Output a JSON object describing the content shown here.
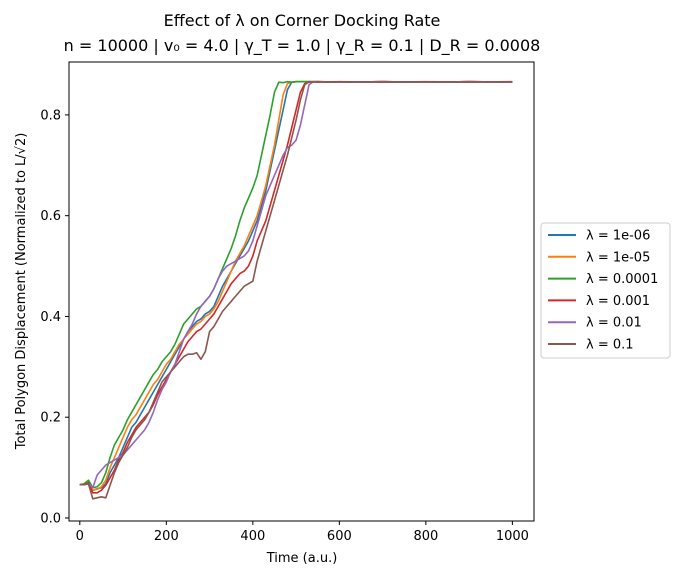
{
  "chart_data": {
    "type": "line",
    "title": "Effect of λ on Corner Docking Rate",
    "subtitle": "n = 10000 | v₀ = 4.0 | γ_T = 1.0 | γ_R = 0.1 | D_R = 0.0008",
    "xlabel": "Time (a.u.)",
    "ylabel": "Total Polygon Displacement (Normalized to L/√2)",
    "xlim": [
      -25,
      1050
    ],
    "ylim": [
      -0.006,
      0.905
    ],
    "xticks": [
      0,
      200,
      400,
      600,
      800,
      1000
    ],
    "xtick_labels": [
      "0",
      "200",
      "400",
      "600",
      "800",
      "1000"
    ],
    "yticks": [
      0.0,
      0.2,
      0.4,
      0.6,
      0.8
    ],
    "ytick_labels": [
      "0.0",
      "0.2",
      "0.4",
      "0.6",
      "0.8"
    ],
    "grid": false,
    "legend_position": "right-outside",
    "series": [
      {
        "name": "λ = 1e-06",
        "color": "#1f77b4",
        "x": [
          0,
          10,
          20,
          30,
          40,
          50,
          60,
          70,
          80,
          90,
          100,
          110,
          120,
          130,
          140,
          150,
          160,
          170,
          180,
          190,
          200,
          210,
          220,
          230,
          240,
          250,
          260,
          270,
          280,
          290,
          300,
          310,
          320,
          330,
          340,
          350,
          360,
          370,
          380,
          390,
          400,
          410,
          420,
          430,
          440,
          450,
          460,
          470,
          480,
          490,
          500,
          550,
          600,
          700,
          800,
          900,
          1000
        ],
        "values": [
          0.066,
          0.067,
          0.07,
          0.055,
          0.058,
          0.06,
          0.068,
          0.09,
          0.105,
          0.12,
          0.14,
          0.16,
          0.18,
          0.19,
          0.205,
          0.22,
          0.235,
          0.25,
          0.265,
          0.28,
          0.295,
          0.31,
          0.325,
          0.34,
          0.355,
          0.37,
          0.38,
          0.39,
          0.395,
          0.405,
          0.41,
          0.42,
          0.44,
          0.46,
          0.475,
          0.49,
          0.505,
          0.52,
          0.535,
          0.55,
          0.57,
          0.59,
          0.62,
          0.65,
          0.69,
          0.73,
          0.77,
          0.81,
          0.85,
          0.865,
          0.866,
          0.866,
          0.865,
          0.866,
          0.865,
          0.866,
          0.865
        ]
      },
      {
        "name": "λ = 1e-05",
        "color": "#ff7f0e",
        "x": [
          0,
          10,
          20,
          30,
          40,
          50,
          60,
          70,
          80,
          90,
          100,
          110,
          120,
          130,
          140,
          150,
          160,
          170,
          180,
          190,
          200,
          210,
          220,
          230,
          240,
          250,
          260,
          270,
          280,
          290,
          300,
          310,
          320,
          330,
          340,
          350,
          360,
          370,
          380,
          390,
          400,
          410,
          420,
          430,
          440,
          450,
          460,
          470,
          480,
          490,
          500,
          550,
          600,
          700,
          800,
          900,
          1000
        ],
        "values": [
          0.066,
          0.066,
          0.072,
          0.055,
          0.057,
          0.062,
          0.075,
          0.1,
          0.12,
          0.14,
          0.16,
          0.18,
          0.195,
          0.205,
          0.22,
          0.235,
          0.25,
          0.265,
          0.275,
          0.29,
          0.305,
          0.315,
          0.33,
          0.345,
          0.355,
          0.365,
          0.375,
          0.385,
          0.39,
          0.4,
          0.405,
          0.415,
          0.43,
          0.45,
          0.47,
          0.49,
          0.51,
          0.525,
          0.54,
          0.56,
          0.58,
          0.6,
          0.63,
          0.66,
          0.7,
          0.74,
          0.79,
          0.84,
          0.862,
          0.865,
          0.866,
          0.866,
          0.865,
          0.866,
          0.865,
          0.866,
          0.865
        ]
      },
      {
        "name": "λ = 0.0001",
        "color": "#2ca02c",
        "x": [
          0,
          10,
          20,
          30,
          40,
          50,
          60,
          70,
          80,
          90,
          100,
          110,
          120,
          130,
          140,
          150,
          160,
          170,
          180,
          190,
          200,
          210,
          220,
          230,
          240,
          250,
          260,
          270,
          280,
          290,
          300,
          310,
          320,
          330,
          340,
          350,
          360,
          370,
          380,
          390,
          400,
          410,
          420,
          430,
          440,
          450,
          460,
          470,
          480,
          490,
          500,
          550,
          600,
          700,
          800,
          900,
          1000
        ],
        "values": [
          0.066,
          0.068,
          0.075,
          0.06,
          0.062,
          0.07,
          0.09,
          0.12,
          0.145,
          0.16,
          0.175,
          0.195,
          0.21,
          0.225,
          0.24,
          0.255,
          0.27,
          0.285,
          0.295,
          0.31,
          0.32,
          0.33,
          0.345,
          0.365,
          0.385,
          0.395,
          0.405,
          0.415,
          0.42,
          0.43,
          0.44,
          0.455,
          0.475,
          0.495,
          0.515,
          0.535,
          0.56,
          0.59,
          0.615,
          0.635,
          0.655,
          0.68,
          0.72,
          0.76,
          0.8,
          0.845,
          0.865,
          0.864,
          0.866,
          0.865,
          0.866,
          0.866,
          0.865,
          0.866,
          0.865,
          0.866,
          0.865
        ]
      },
      {
        "name": "λ = 0.001",
        "color": "#d62728",
        "x": [
          0,
          10,
          20,
          30,
          40,
          50,
          60,
          70,
          80,
          90,
          100,
          110,
          120,
          130,
          140,
          150,
          160,
          170,
          180,
          190,
          200,
          210,
          220,
          230,
          240,
          250,
          260,
          270,
          280,
          290,
          300,
          310,
          320,
          330,
          340,
          350,
          360,
          370,
          380,
          390,
          400,
          410,
          420,
          430,
          440,
          450,
          460,
          470,
          480,
          490,
          500,
          510,
          520,
          530,
          550,
          600,
          700,
          800,
          900,
          1000
        ],
        "values": [
          0.066,
          0.066,
          0.07,
          0.05,
          0.05,
          0.055,
          0.065,
          0.08,
          0.095,
          0.115,
          0.13,
          0.15,
          0.165,
          0.18,
          0.19,
          0.2,
          0.21,
          0.225,
          0.245,
          0.26,
          0.275,
          0.29,
          0.305,
          0.32,
          0.335,
          0.35,
          0.36,
          0.37,
          0.375,
          0.385,
          0.395,
          0.405,
          0.42,
          0.435,
          0.45,
          0.465,
          0.475,
          0.485,
          0.49,
          0.5,
          0.52,
          0.55,
          0.57,
          0.59,
          0.62,
          0.65,
          0.68,
          0.71,
          0.74,
          0.775,
          0.81,
          0.845,
          0.862,
          0.865,
          0.866,
          0.865,
          0.866,
          0.865,
          0.866,
          0.865
        ]
      },
      {
        "name": "λ = 0.01",
        "color": "#9467bd",
        "x": [
          0,
          10,
          20,
          30,
          40,
          50,
          60,
          70,
          80,
          90,
          100,
          110,
          120,
          130,
          140,
          150,
          160,
          170,
          180,
          190,
          200,
          210,
          220,
          230,
          240,
          250,
          260,
          270,
          280,
          290,
          300,
          310,
          320,
          330,
          340,
          350,
          360,
          370,
          380,
          390,
          400,
          410,
          420,
          430,
          440,
          450,
          460,
          470,
          480,
          490,
          500,
          510,
          520,
          530,
          540,
          550,
          560,
          600,
          700,
          800,
          900,
          1000
        ],
        "values": [
          0.066,
          0.066,
          0.068,
          0.06,
          0.085,
          0.095,
          0.105,
          0.11,
          0.115,
          0.12,
          0.125,
          0.135,
          0.145,
          0.155,
          0.165,
          0.175,
          0.19,
          0.21,
          0.235,
          0.255,
          0.27,
          0.29,
          0.305,
          0.33,
          0.355,
          0.37,
          0.385,
          0.405,
          0.42,
          0.43,
          0.44,
          0.455,
          0.475,
          0.49,
          0.5,
          0.505,
          0.51,
          0.515,
          0.52,
          0.53,
          0.55,
          0.58,
          0.61,
          0.64,
          0.66,
          0.68,
          0.7,
          0.72,
          0.735,
          0.74,
          0.75,
          0.78,
          0.82,
          0.86,
          0.866,
          0.865,
          0.866,
          0.865,
          0.866,
          0.865,
          0.866,
          0.865
        ]
      },
      {
        "name": "λ = 0.1",
        "color": "#8c564b",
        "x": [
          0,
          10,
          20,
          30,
          40,
          50,
          60,
          70,
          80,
          90,
          100,
          110,
          120,
          130,
          140,
          150,
          160,
          170,
          180,
          190,
          200,
          210,
          220,
          230,
          240,
          250,
          260,
          270,
          280,
          290,
          300,
          310,
          320,
          330,
          340,
          350,
          360,
          370,
          380,
          390,
          400,
          410,
          420,
          430,
          440,
          450,
          460,
          470,
          480,
          490,
          500,
          510,
          520,
          530,
          550,
          600,
          700,
          800,
          900,
          1000
        ],
        "values": [
          0.066,
          0.066,
          0.068,
          0.038,
          0.04,
          0.042,
          0.04,
          0.065,
          0.09,
          0.11,
          0.125,
          0.14,
          0.16,
          0.175,
          0.185,
          0.195,
          0.21,
          0.23,
          0.25,
          0.27,
          0.28,
          0.29,
          0.3,
          0.31,
          0.32,
          0.325,
          0.325,
          0.328,
          0.315,
          0.33,
          0.37,
          0.38,
          0.395,
          0.41,
          0.42,
          0.43,
          0.44,
          0.45,
          0.46,
          0.465,
          0.47,
          0.51,
          0.54,
          0.57,
          0.6,
          0.63,
          0.66,
          0.69,
          0.72,
          0.755,
          0.79,
          0.83,
          0.86,
          0.866,
          0.865,
          0.866,
          0.865,
          0.866,
          0.865,
          0.866
        ]
      }
    ]
  }
}
